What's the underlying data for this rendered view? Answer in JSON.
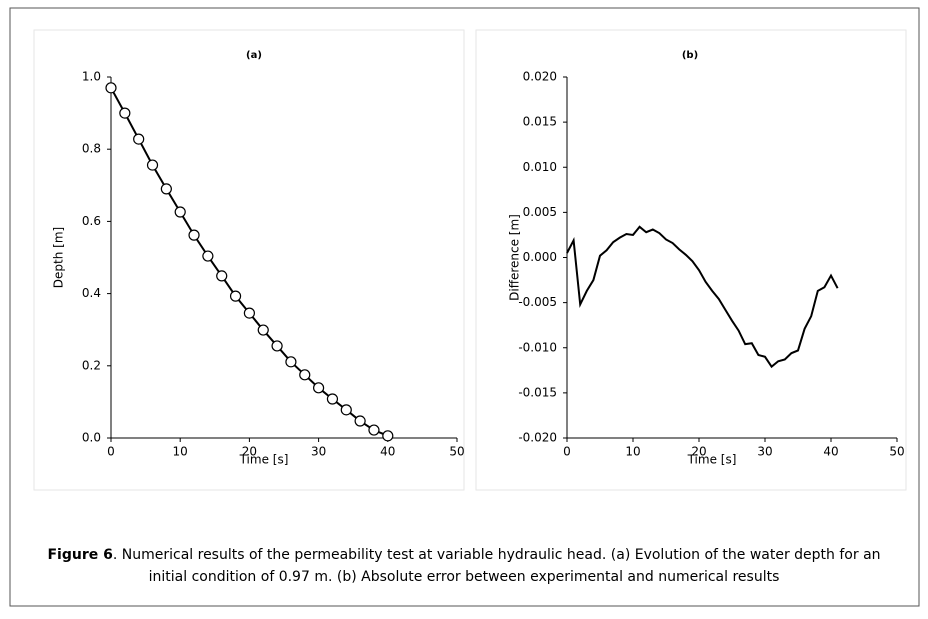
{
  "chart_data": [
    {
      "type": "line",
      "title": "(a)",
      "x_label": "Time [s]",
      "y_label": "Depth [m]",
      "xlim": [
        0,
        50
      ],
      "xticks": [
        0,
        10,
        20,
        30,
        40,
        50
      ],
      "ylim": [
        0,
        1
      ],
      "yticks": [
        {
          "value": 0,
          "label": "0.0"
        },
        0.2,
        0.4,
        0.6,
        0.8,
        {
          "value": 1,
          "label": "1.0"
        }
      ],
      "series": [
        {
          "color": "#000000",
          "marker": "circle",
          "x": [
            0,
            2,
            4,
            6,
            8,
            10,
            12,
            14,
            16,
            18,
            20,
            22,
            24,
            26,
            28,
            30,
            32,
            34,
            36,
            38,
            40
          ],
          "values": [
            0.97,
            0.9,
            0.828,
            0.756,
            0.69,
            0.626,
            0.562,
            0.504,
            0.449,
            0.393,
            0.346,
            0.299,
            0.255,
            0.211,
            0.175,
            0.139,
            0.108,
            0.078,
            0.047,
            0.022,
            0.006
          ]
        }
      ]
    },
    {
      "type": "line",
      "title": "(b)",
      "x_label": "Time [s]",
      "y_label": "Difference [m]",
      "xlim": [
        0,
        50
      ],
      "xticks": [
        0,
        10,
        20,
        30,
        40,
        50
      ],
      "ylim": [
        -0.02,
        0.02
      ],
      "yticks": [
        {
          "value": -0.02,
          "label": "-0.020"
        },
        {
          "value": -0.015,
          "label": "-0.015"
        },
        {
          "value": -0.01,
          "label": "-0.010"
        },
        {
          "value": -0.005,
          "label": "-0.005"
        },
        {
          "value": 0,
          "label": "0.000"
        },
        {
          "value": 0.005,
          "label": "0.005"
        },
        {
          "value": 0.01,
          "label": "0.010"
        },
        {
          "value": 0.015,
          "label": "0.015"
        },
        {
          "value": 0.02,
          "label": "0.020"
        }
      ],
      "series": [
        {
          "color": "#000000",
          "x": [
            0,
            1,
            2,
            3,
            4,
            5,
            6,
            7,
            8,
            9,
            10,
            11,
            12,
            13,
            14,
            15,
            16,
            17,
            18,
            19,
            20,
            21,
            22,
            23,
            24,
            25,
            26,
            27,
            28,
            29,
            30,
            31,
            32,
            33,
            34,
            35,
            36,
            37,
            38,
            39,
            40,
            41
          ],
          "values": [
            0.0005,
            0.0019,
            -0.0052,
            -0.0037,
            -0.0025,
            0.0002,
            0.0008,
            0.0017,
            0.0022,
            0.0026,
            0.0025,
            0.0034,
            0.0028,
            0.0031,
            0.0027,
            0.002,
            0.0016,
            0.0009,
            0.0003,
            -0.0004,
            -0.0014,
            -0.0027,
            -0.0037,
            -0.0046,
            -0.0058,
            -0.007,
            -0.0081,
            -0.0096,
            -0.0095,
            -0.0108,
            -0.011,
            -0.0121,
            -0.0115,
            -0.0113,
            -0.0106,
            -0.0103,
            -0.0079,
            -0.0065,
            -0.0037,
            -0.0033,
            -0.002,
            -0.0034
          ]
        }
      ]
    }
  ],
  "caption": {
    "label": "Figure 6",
    "text": ". Numerical results of the permeability test at variable hydraulic head. (a) Evolution of the water depth for an initial condition of 0.97 m. (b) Absolute error between experimental and numerical results"
  }
}
